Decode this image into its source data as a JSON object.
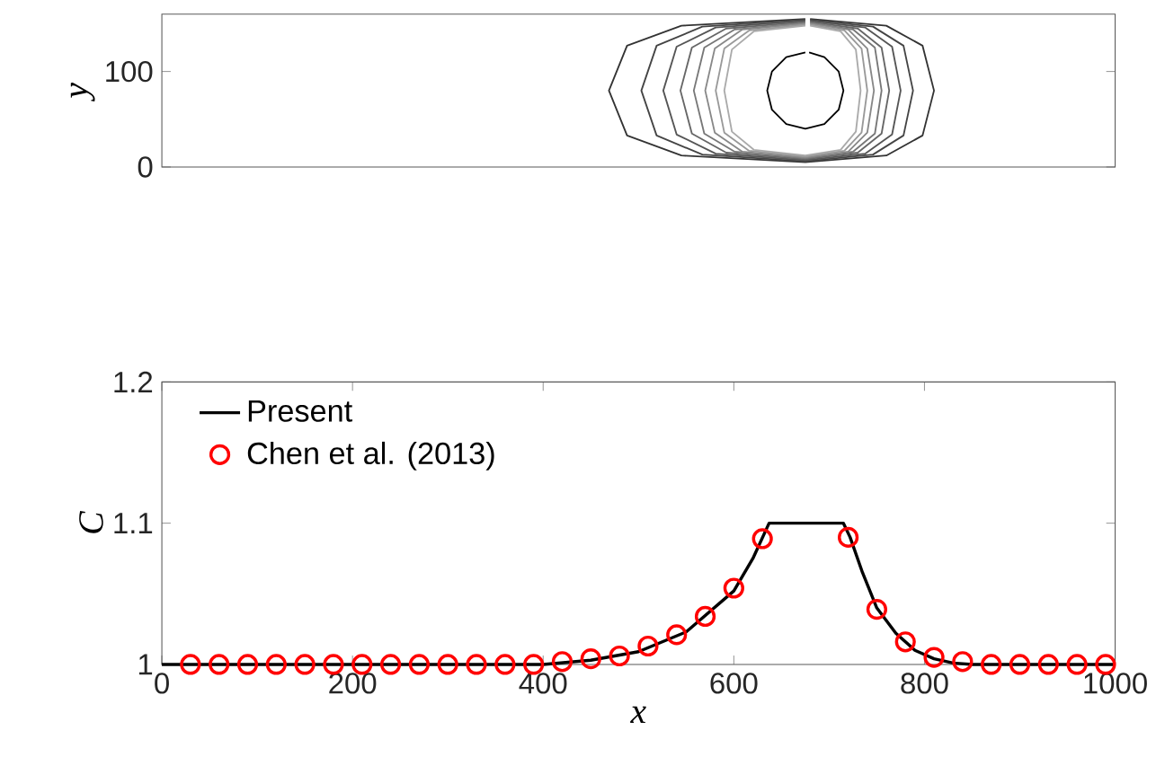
{
  "chart_data": [
    {
      "type": "line",
      "ylabel": "y",
      "xlim": [
        0,
        1000
      ],
      "ylim": [
        0,
        160
      ],
      "xticks": [
        0,
        200,
        400,
        600,
        800,
        1000
      ],
      "yticks": [
        0,
        100
      ],
      "tick_labels": "y",
      "grid": false,
      "legend": false,
      "line_style": "solid",
      "series": [
        {
          "color": "#333333",
          "x": [
            675,
            545,
            488,
            469,
            488,
            545,
            675,
            760,
            798,
            810,
            798,
            760,
            680
          ],
          "values": [
            155,
            148,
            127,
            80,
            33,
            12,
            5,
            12,
            33,
            80,
            127,
            148,
            155
          ]
        },
        {
          "color": "#444444",
          "x": [
            675,
            567,
            519,
            503,
            519,
            567,
            675,
            746,
            778,
            788,
            778,
            746,
            680
          ],
          "values": [
            154,
            147,
            127,
            80,
            33,
            13,
            6,
            13,
            33,
            80,
            127,
            147,
            154
          ]
        },
        {
          "color": "#555555",
          "x": [
            675,
            581,
            540,
            526,
            540,
            581,
            675,
            738,
            766,
            775,
            766,
            738,
            680
          ],
          "values": [
            153,
            146,
            126,
            80,
            34,
            14,
            7,
            14,
            34,
            80,
            126,
            146,
            153
          ]
        },
        {
          "color": "#666666",
          "x": [
            675,
            592,
            556,
            544,
            556,
            592,
            675,
            730,
            755,
            763,
            755,
            730,
            680
          ],
          "values": [
            152,
            145,
            125,
            80,
            35,
            15,
            8,
            15,
            35,
            80,
            125,
            145,
            152
          ]
        },
        {
          "color": "#777777",
          "x": [
            675,
            601,
            569,
            558,
            569,
            601,
            675,
            725,
            748,
            755,
            748,
            725,
            680
          ],
          "values": [
            151,
            144,
            125,
            80,
            35,
            16,
            9,
            16,
            35,
            80,
            125,
            144,
            151
          ]
        },
        {
          "color": "#888888",
          "x": [
            675,
            609,
            580,
            570,
            580,
            609,
            675,
            720,
            740,
            747,
            740,
            720,
            680
          ],
          "values": [
            150,
            144,
            124,
            80,
            36,
            16,
            10,
            16,
            36,
            80,
            124,
            144,
            150
          ]
        },
        {
          "color": "#999999",
          "x": [
            675,
            616,
            590,
            581,
            590,
            616,
            675,
            716,
            734,
            740,
            734,
            716,
            680
          ],
          "values": [
            149,
            143,
            124,
            80,
            36,
            17,
            11,
            17,
            36,
            80,
            124,
            143,
            149
          ]
        },
        {
          "color": "#aaaaaa",
          "x": [
            675,
            621,
            598,
            590,
            598,
            621,
            675,
            712,
            728,
            733,
            728,
            712,
            680
          ],
          "values": [
            148,
            142,
            123,
            80,
            37,
            18,
            12,
            18,
            37,
            80,
            123,
            142,
            148
          ]
        },
        {
          "color": "#000000",
          "x": [
            675,
            655,
            640,
            635,
            640,
            655,
            675,
            695,
            710,
            715,
            710,
            695,
            679
          ],
          "values": [
            120,
            115,
            100,
            80,
            60,
            45,
            40,
            45,
            60,
            80,
            100,
            115,
            120
          ]
        }
      ]
    },
    {
      "type": "line",
      "xlabel": "x",
      "ylabel": "C",
      "xlim": [
        0,
        1000
      ],
      "ylim": [
        1,
        1.2
      ],
      "xticks": [
        0,
        200,
        400,
        600,
        800,
        1000
      ],
      "yticks": [
        1,
        1.1,
        1.2
      ],
      "grid": false,
      "legend": "top left",
      "series": [
        {
          "name": "Present",
          "type": "line",
          "color": "#000000",
          "line_style": "solid",
          "marker": "none",
          "x": [
            0,
            400,
            450,
            500,
            550,
            600,
            620,
            637,
            715,
            722,
            735,
            750,
            770,
            790,
            810,
            830,
            850,
            1000
          ],
          "values": [
            1.0,
            1.0,
            1.003,
            1.009,
            1.023,
            1.052,
            1.075,
            1.1,
            1.1,
            1.09,
            1.065,
            1.04,
            1.022,
            1.01,
            1.004,
            1.001,
            1.0,
            1.0
          ]
        },
        {
          "name": "Chen et al. (2013)",
          "type": "scatter",
          "color": "#ff0000",
          "marker": "circle",
          "x": [
            30,
            60,
            90,
            120,
            150,
            180,
            210,
            240,
            270,
            300,
            330,
            360,
            390,
            420,
            450,
            480,
            510,
            540,
            570,
            600,
            630,
            720,
            750,
            780,
            810,
            840,
            870,
            900,
            930,
            960,
            990
          ],
          "values": [
            1.0,
            1.0,
            1.0,
            1.0,
            1.0,
            1.0,
            1.0,
            1.0,
            1.0,
            1.0,
            1.0,
            1.0,
            1.0,
            1.002,
            1.004,
            1.006,
            1.013,
            1.021,
            1.034,
            1.054,
            1.089,
            1.09,
            1.039,
            1.016,
            1.005,
            1.002,
            1.0,
            1.0,
            1.0,
            1.0,
            1.0
          ]
        }
      ]
    }
  ]
}
